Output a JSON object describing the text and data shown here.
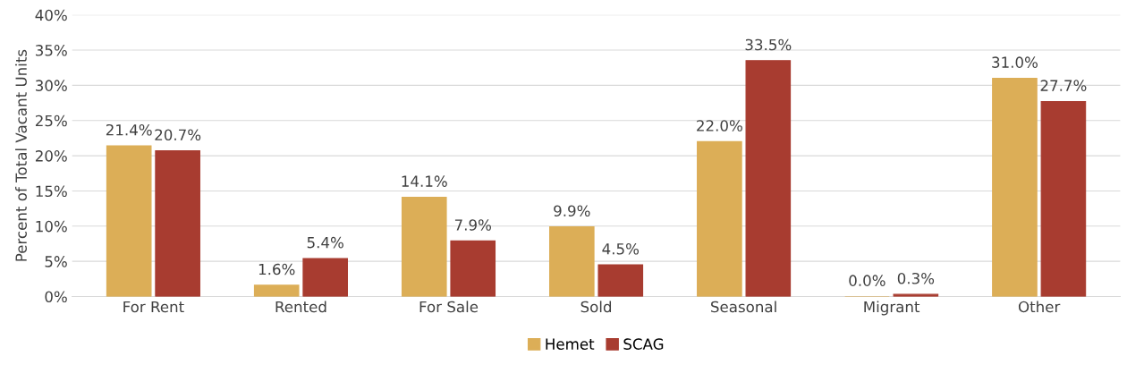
{
  "chart_data": {
    "type": "bar",
    "ylabel": "Percent of Total Vacant Units",
    "categories": [
      "For Rent",
      "Rented",
      "For Sale",
      "Sold",
      "Seasonal",
      "Migrant",
      "Other"
    ],
    "series": [
      {
        "name": "Hemet",
        "color": "#dcae57",
        "values": [
          21.4,
          1.6,
          14.1,
          9.9,
          22.0,
          0.0,
          31.0
        ],
        "value_labels": [
          "21.4%",
          "1.6%",
          "14.1%",
          "9.9%",
          "22.0%",
          "0.0%",
          "31.0%"
        ]
      },
      {
        "name": "SCAG",
        "color": "#a83c30",
        "values": [
          20.7,
          5.4,
          7.9,
          4.5,
          33.5,
          0.3,
          27.7
        ],
        "value_labels": [
          "20.7%",
          "5.4%",
          "7.9%",
          "4.5%",
          "33.5%",
          "0.3%",
          "27.7%"
        ]
      }
    ],
    "ylim": [
      0,
      40
    ],
    "yticks": [
      {
        "value": 0,
        "label": "0%"
      },
      {
        "value": 5,
        "label": "5%"
      },
      {
        "value": 10,
        "label": "10%"
      },
      {
        "value": 15,
        "label": "15%"
      },
      {
        "value": 20,
        "label": "20%"
      },
      {
        "value": 25,
        "label": "25%"
      },
      {
        "value": 30,
        "label": "30%"
      },
      {
        "value": 35,
        "label": "35%"
      },
      {
        "value": 40,
        "label": "40%"
      }
    ],
    "grid": "y",
    "legend": "bottom"
  }
}
